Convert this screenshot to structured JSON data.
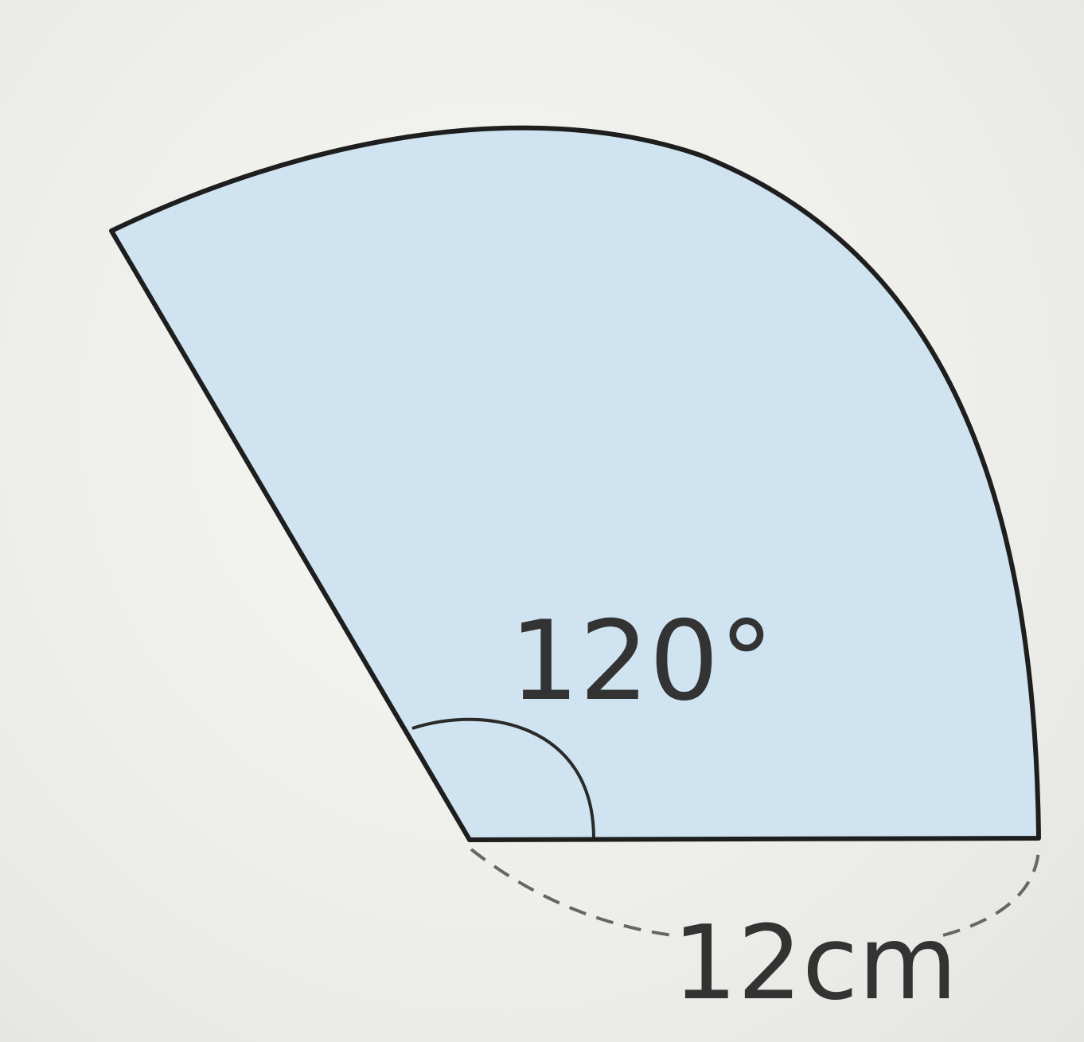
{
  "diagram": {
    "angle_label": "120°",
    "radius_label": "12cm",
    "colors": {
      "sector_fill": "#cfe3f0",
      "outline": "#1e1e1e",
      "dashed": "#666666",
      "text": "#333333"
    }
  }
}
